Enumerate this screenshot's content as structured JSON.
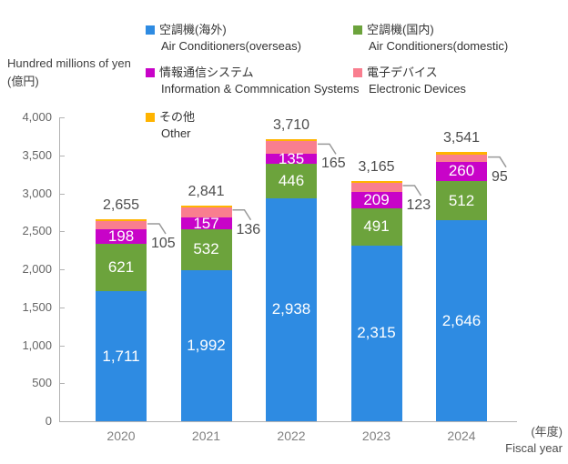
{
  "unit_label": {
    "en": "Hundred millions of yen",
    "jp": "(億円)"
  },
  "legend": {
    "items": [
      {
        "jp": "空調機(海外)",
        "en": "Air Conditioners(overseas)",
        "color": "#2e8be2"
      },
      {
        "jp": "空調機(国内)",
        "en": "Air Conditioners(domestic)",
        "color": "#6ca33c"
      },
      {
        "jp": "情報通信システム",
        "en": "Information & Commnication Systems",
        "color": "#c803c8"
      },
      {
        "jp": "電子デバイス",
        "en": "Electronic Devices",
        "color": "#f97e8f"
      },
      {
        "jp": "その他",
        "en": "Other",
        "color": "#ffb400"
      }
    ]
  },
  "x_axis_caption": {
    "jp": "(年度)",
    "en": "Fiscal year"
  },
  "chart_data": {
    "type": "bar",
    "stacked": true,
    "title": "",
    "ylabel": "Hundred millions of yen (億円)",
    "xlabel": "Fiscal year (年度)",
    "ylim": [
      0,
      4000
    ],
    "ytick_step": 500,
    "grid": false,
    "legend_position": "top",
    "categories": [
      "2020",
      "2021",
      "2022",
      "2023",
      "2024"
    ],
    "totals": [
      2655,
      2841,
      3710,
      3165,
      3541
    ],
    "series": [
      {
        "name": "空調機(海外) Air Conditioners(overseas)",
        "color": "#2e8be2",
        "values": [
          1711,
          1992,
          2938,
          2315,
          2646
        ],
        "labels": "inside"
      },
      {
        "name": "空調機(国内) Air Conditioners(domestic)",
        "color": "#6ca33c",
        "values": [
          621,
          532,
          446,
          491,
          512
        ],
        "labels": "inside"
      },
      {
        "name": "情報通信システム Information & Commnication Systems",
        "color": "#c803c8",
        "values": [
          198,
          157,
          135,
          209,
          260
        ],
        "labels": "inside"
      },
      {
        "name": "電子デバイス Electronic Devices",
        "color": "#f97e8f",
        "values": [
          105,
          136,
          165,
          123,
          95
        ],
        "labels": "callout"
      },
      {
        "name": "その他 Other",
        "color": "#ffb400",
        "values": null,
        "remainder_of_total": true,
        "labels": "none"
      }
    ]
  }
}
